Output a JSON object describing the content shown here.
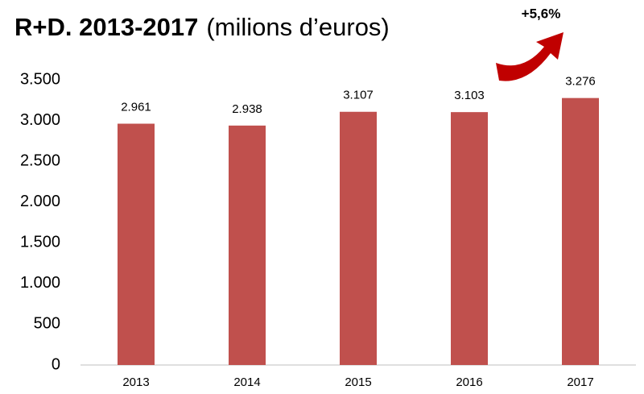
{
  "chart_data": {
    "type": "bar",
    "title": "R+D. 2013-2017",
    "subtitle": "(milions d’euros)",
    "annotation": "+5,6%",
    "categories": [
      "2013",
      "2014",
      "2015",
      "2016",
      "2017"
    ],
    "values": [
      2961,
      2938,
      3107,
      3103,
      3276
    ],
    "value_labels": [
      "2.961",
      "2.938",
      "3.107",
      "3.103",
      "3.276"
    ],
    "color": "#c0504d",
    "ylim": [
      0,
      3500
    ],
    "yticks": [
      0,
      500,
      {
        "value": 1000,
        "label": "1.000"
      },
      {
        "value": 1500,
        "label": "1.500"
      },
      {
        "value": 2000,
        "label": "2.000"
      },
      {
        "value": 2500,
        "label": "2.500"
      },
      {
        "value": 3000,
        "label": "3.000"
      },
      {
        "value": 3500,
        "label": "3.500"
      }
    ],
    "grid": false
  }
}
